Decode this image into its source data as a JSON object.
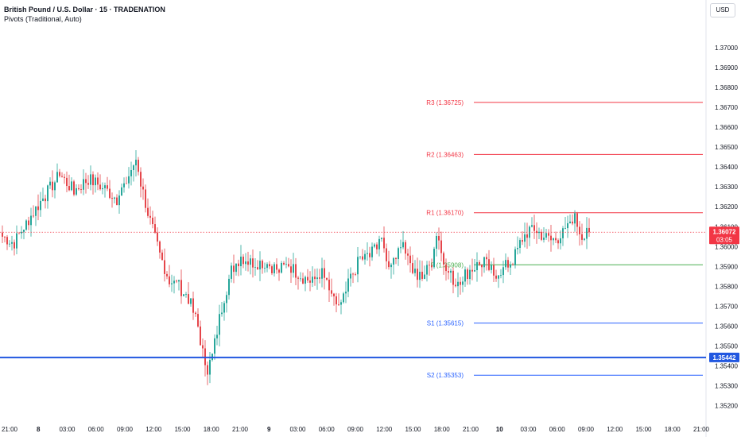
{
  "header": {
    "title": "British Pound / U.S. Dollar · 15 · TRADENATION",
    "indicator": "Pivots (Traditional, Auto)",
    "currency": "USD"
  },
  "colors": {
    "up": "#26a69a",
    "down": "#e5454a",
    "resistance": "#f23645",
    "support": "#2962ff",
    "pivot": "#4caf50",
    "hline": "#2157e0",
    "price_tag": "#f23645",
    "grid_text": "#131722"
  },
  "chart_data": {
    "type": "candlestick",
    "title": "British Pound / U.S. Dollar · 15 · TRADENATION",
    "ylim": [
      1.3515,
      1.3712
    ],
    "y_ticks": [
      "1.37000",
      "1.36900",
      "1.36800",
      "1.36700",
      "1.36600",
      "1.36500",
      "1.36400",
      "1.36300",
      "1.36200",
      "1.36100",
      "1.36000",
      "1.35900",
      "1.35800",
      "1.35700",
      "1.35600",
      "1.35500",
      "1.35400",
      "1.35300",
      "1.35200"
    ],
    "x_ticks": [
      "21:00",
      "8",
      "03:00",
      "06:00",
      "09:00",
      "12:00",
      "15:00",
      "18:00",
      "21:00",
      "9",
      "03:00",
      "06:00",
      "09:00",
      "12:00",
      "15:00",
      "18:00",
      "21:00",
      "10",
      "03:00",
      "06:00",
      "09:00",
      "12:00",
      "15:00",
      "18:00",
      "21:00"
    ],
    "pivots": [
      {
        "name": "R3",
        "label": "R3 (1.36725)",
        "value": 1.36725
      },
      {
        "name": "R2",
        "label": "R2 (1.36463)",
        "value": 1.36463
      },
      {
        "name": "R1",
        "label": "R1 (1.36170)",
        "value": 1.3617
      },
      {
        "name": "P",
        "label": "P (1.35908)",
        "value": 1.35908
      },
      {
        "name": "S1",
        "label": "S1 (1.35615)",
        "value": 1.35615
      },
      {
        "name": "S2",
        "label": "S2 (1.35353)",
        "value": 1.35353
      }
    ],
    "horizontal_line": {
      "value": 1.35442,
      "label": "1.35442"
    },
    "last_price": {
      "value": 1.36072,
      "label": "1.36072",
      "countdown": "03:05"
    },
    "anchors": [
      [
        0,
        1.3605
      ],
      [
        5,
        1.3602
      ],
      [
        10,
        1.3612
      ],
      [
        18,
        1.3626
      ],
      [
        24,
        1.3636
      ],
      [
        30,
        1.3628
      ],
      [
        36,
        1.3634
      ],
      [
        42,
        1.363
      ],
      [
        48,
        1.3624
      ],
      [
        52,
        1.3633
      ],
      [
        56,
        1.3644
      ],
      [
        58,
        1.3632
      ],
      [
        62,
        1.3612
      ],
      [
        66,
        1.3596
      ],
      [
        70,
        1.3583
      ],
      [
        74,
        1.358
      ],
      [
        78,
        1.3574
      ],
      [
        82,
        1.356
      ],
      [
        84,
        1.3546
      ],
      [
        86,
        1.3538
      ],
      [
        88,
        1.3545
      ],
      [
        92,
        1.357
      ],
      [
        96,
        1.3588
      ],
      [
        100,
        1.3595
      ],
      [
        104,
        1.3592
      ],
      [
        110,
        1.3592
      ],
      [
        116,
        1.3588
      ],
      [
        120,
        1.3591
      ],
      [
        124,
        1.3586
      ],
      [
        130,
        1.3582
      ],
      [
        134,
        1.3588
      ],
      [
        138,
        1.3573
      ],
      [
        142,
        1.357
      ],
      [
        146,
        1.3584
      ],
      [
        150,
        1.3594
      ],
      [
        154,
        1.3595
      ],
      [
        158,
        1.3604
      ],
      [
        162,
        1.3592
      ],
      [
        166,
        1.3596
      ],
      [
        168,
        1.3603
      ],
      [
        171,
        1.359
      ],
      [
        174,
        1.3584
      ],
      [
        178,
        1.3588
      ],
      [
        180,
        1.3592
      ],
      [
        182,
        1.3606
      ],
      [
        184,
        1.36
      ],
      [
        186,
        1.3588
      ],
      [
        190,
        1.3582
      ],
      [
        194,
        1.3586
      ],
      [
        198,
        1.359
      ],
      [
        202,
        1.3592
      ],
      [
        206,
        1.3586
      ],
      [
        210,
        1.3589
      ],
      [
        214,
        1.3593
      ],
      [
        218,
        1.3604
      ],
      [
        222,
        1.361
      ],
      [
        226,
        1.3606
      ],
      [
        230,
        1.3603
      ],
      [
        234,
        1.3605
      ],
      [
        238,
        1.361
      ],
      [
        240,
        1.3614
      ],
      [
        242,
        1.3608
      ],
      [
        244,
        1.3605
      ],
      [
        246,
        1.3607
      ]
    ]
  }
}
